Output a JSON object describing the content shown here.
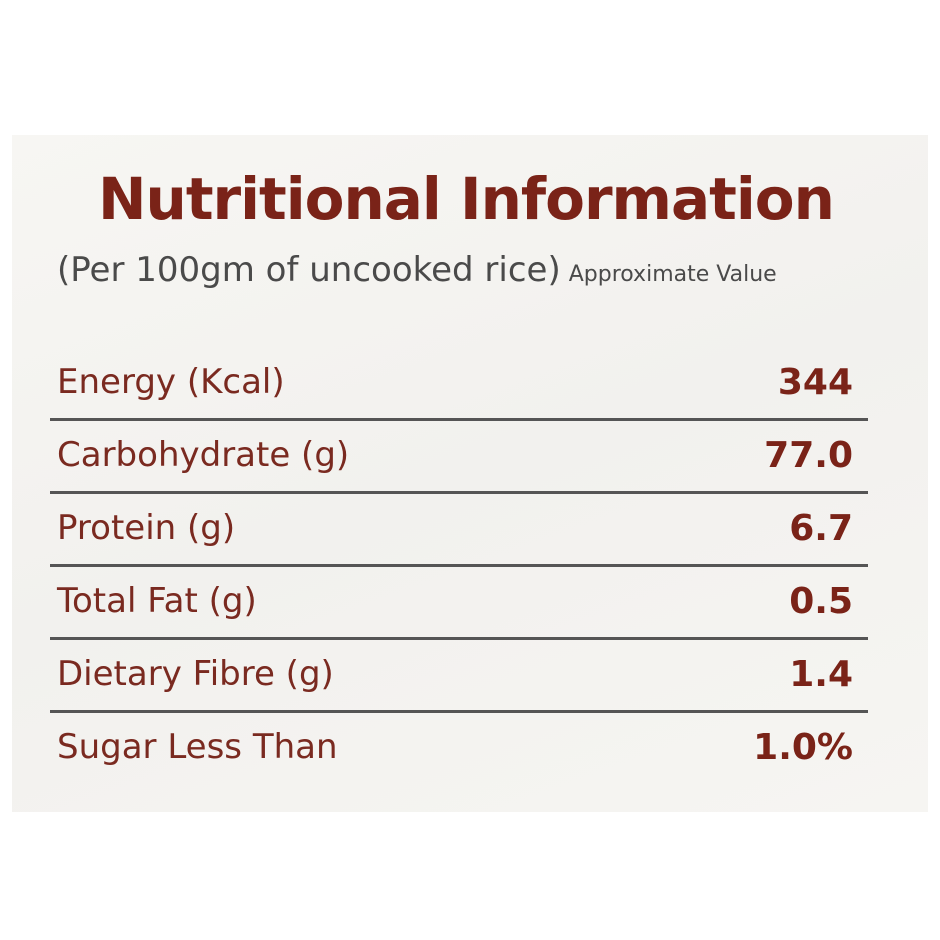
{
  "header": {
    "title": "Nutritional Information",
    "subtitle": "(Per 100gm of uncooked rice)",
    "note": "Approximate Value"
  },
  "table": {
    "rows": [
      [
        "Energy (Kcal)",
        "344"
      ],
      [
        "Carbohydrate (g)",
        "77.0"
      ],
      [
        "Protein (g)",
        "6.7"
      ],
      [
        "Total Fat (g)",
        "0.5"
      ],
      [
        "Dietary Fibre (g)",
        "1.4"
      ],
      [
        "Sugar Less Than",
        "1.0%"
      ]
    ]
  }
}
